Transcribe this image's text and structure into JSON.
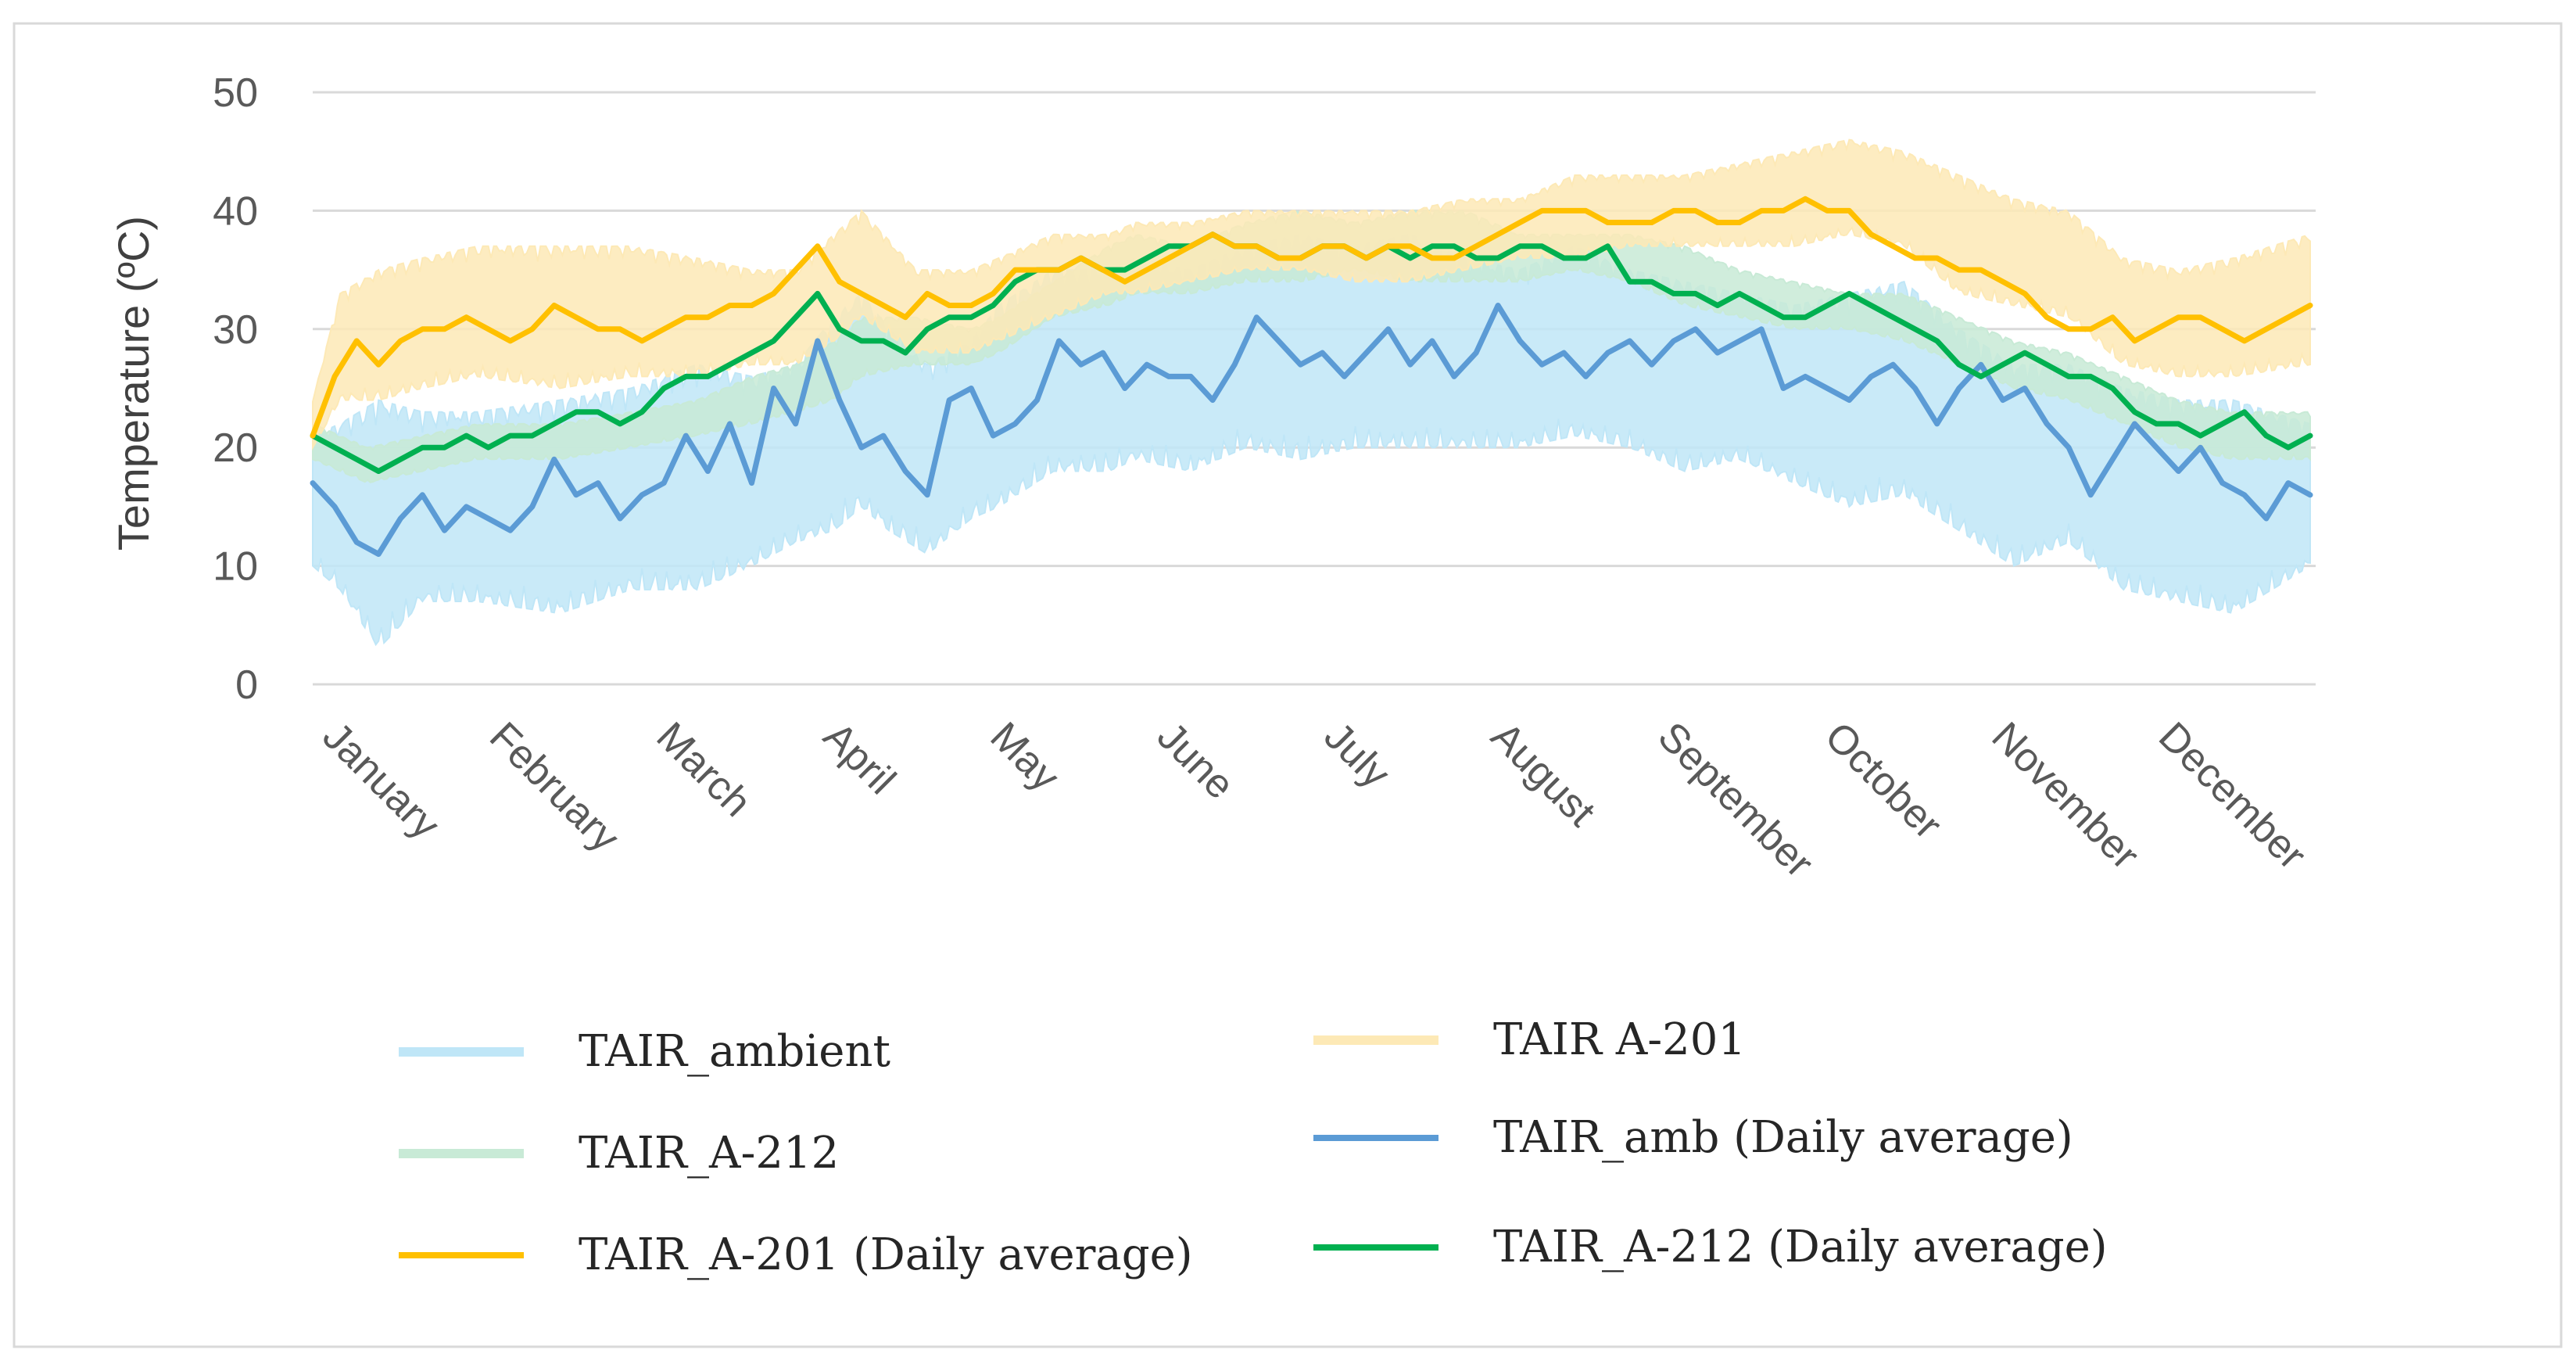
{
  "chart_data": {
    "type": "line",
    "title": "",
    "ylabel": "Temperature (ºC)",
    "xlabel": "",
    "ylim": [
      0,
      50
    ],
    "yticks": [
      0,
      10,
      20,
      30,
      40,
      50
    ],
    "grid": true,
    "legend_position": "bottom",
    "month_labels": [
      "January",
      "February",
      "March",
      "April",
      "May",
      "June",
      "July",
      "August",
      "September",
      "October",
      "November",
      "December"
    ],
    "days_in_year": 365,
    "series": [
      {
        "name": "TAIR_ambient",
        "kind": "hourly-range",
        "color": "#bfe6f7",
        "days": [
          0,
          5,
          12,
          20,
          30,
          45,
          58,
          70,
          80,
          88,
          95,
          100,
          105,
          112,
          120,
          125,
          135,
          145,
          150,
          160,
          170,
          180,
          190,
          200,
          210,
          220,
          230,
          240,
          250,
          260,
          270,
          280,
          290,
          300,
          310,
          320,
          330,
          340,
          350,
          364
        ],
        "min": [
          10,
          8,
          3,
          7,
          7,
          6,
          8,
          8,
          10,
          12,
          13,
          15,
          13,
          11,
          14,
          15,
          18,
          18,
          19,
          18,
          20,
          19,
          20,
          20,
          20,
          20,
          21,
          20,
          18,
          19,
          17,
          15,
          16,
          13,
          10,
          12,
          8,
          7,
          6,
          10
        ],
        "max": [
          21,
          22,
          24,
          23,
          23,
          24,
          25,
          27,
          26,
          27,
          31,
          33,
          30,
          27,
          29,
          32,
          35,
          35,
          36,
          35,
          37,
          38,
          37,
          38,
          36,
          35,
          37,
          35,
          34,
          33,
          32,
          33,
          34,
          30,
          27,
          27,
          25,
          24,
          24,
          22
        ]
      },
      {
        "name": "TAIR_A-212",
        "kind": "hourly-range",
        "color": "#c8ead6",
        "days": [
          0,
          10,
          20,
          30,
          45,
          58,
          70,
          80,
          88,
          95,
          100,
          110,
          120,
          125,
          135,
          145,
          150,
          160,
          170,
          180,
          190,
          200,
          210,
          220,
          230,
          240,
          250,
          260,
          270,
          280,
          290,
          300,
          310,
          320,
          330,
          340,
          350,
          364
        ],
        "min": [
          19,
          17,
          18,
          19,
          19,
          20,
          21,
          22,
          23,
          24,
          26,
          27,
          27,
          28,
          31,
          32,
          33,
          33,
          34,
          34,
          35,
          34,
          34,
          34,
          35,
          34,
          32,
          31,
          30,
          30,
          29,
          27,
          25,
          24,
          22,
          20,
          19,
          19
        ],
        "max": [
          22,
          20,
          21,
          22,
          22,
          23,
          24,
          26,
          27,
          29,
          31,
          31,
          30,
          31,
          34,
          37,
          38,
          37,
          39,
          40,
          39,
          40,
          40,
          38,
          38,
          38,
          37,
          35,
          34,
          33,
          33,
          31,
          29,
          28,
          26,
          24,
          23,
          23
        ]
      },
      {
        "name": "TAIR A-201",
        "kind": "hourly-range",
        "color": "#fde9b6",
        "days": [
          0,
          5,
          12,
          20,
          30,
          45,
          58,
          70,
          80,
          88,
          95,
          100,
          110,
          120,
          125,
          135,
          145,
          150,
          160,
          170,
          180,
          190,
          200,
          210,
          220,
          230,
          240,
          250,
          260,
          270,
          280,
          290,
          300,
          310,
          320,
          330,
          340,
          350,
          364
        ],
        "min": [
          20,
          24,
          24,
          25,
          26,
          25,
          26,
          26,
          27,
          27,
          29,
          31,
          28,
          28,
          29,
          31,
          33,
          33,
          34,
          35,
          35,
          34,
          34,
          35,
          36,
          36,
          37,
          37,
          37,
          37,
          38,
          37,
          33,
          32,
          31,
          27,
          26,
          26,
          27
        ],
        "max": [
          24,
          33,
          35,
          36,
          37,
          37,
          37,
          36,
          35,
          35,
          38,
          40,
          35,
          35,
          36,
          38,
          38,
          39,
          39,
          40,
          40,
          40,
          40,
          41,
          41,
          43,
          43,
          43,
          44,
          45,
          46,
          45,
          43,
          41,
          40,
          36,
          35,
          36,
          38
        ]
      },
      {
        "name": "TAIR_amb (Daily average)",
        "kind": "daily-average",
        "color": "#5b9bd5",
        "days": [
          0,
          4,
          8,
          12,
          16,
          20,
          24,
          28,
          32,
          36,
          40,
          44,
          48,
          52,
          56,
          60,
          64,
          68,
          72,
          76,
          80,
          84,
          88,
          92,
          96,
          100,
          104,
          108,
          112,
          116,
          120,
          124,
          128,
          132,
          136,
          140,
          144,
          148,
          152,
          156,
          160,
          164,
          168,
          172,
          176,
          180,
          184,
          188,
          192,
          196,
          200,
          204,
          208,
          212,
          216,
          220,
          224,
          228,
          232,
          236,
          240,
          244,
          248,
          252,
          256,
          260,
          264,
          268,
          272,
          276,
          280,
          284,
          288,
          292,
          296,
          300,
          304,
          308,
          312,
          316,
          320,
          324,
          328,
          332,
          336,
          340,
          344,
          348,
          352,
          356,
          360,
          364
        ],
        "values": [
          17,
          15,
          12,
          11,
          14,
          16,
          13,
          15,
          14,
          13,
          15,
          19,
          16,
          17,
          14,
          16,
          17,
          21,
          18,
          22,
          17,
          25,
          22,
          29,
          24,
          20,
          21,
          18,
          16,
          24,
          25,
          21,
          22,
          24,
          29,
          27,
          28,
          25,
          27,
          26,
          26,
          24,
          27,
          31,
          29,
          27,
          28,
          26,
          28,
          30,
          27,
          29,
          26,
          28,
          32,
          29,
          27,
          28,
          26,
          28,
          29,
          27,
          29,
          30,
          28,
          29,
          30,
          25,
          26,
          25,
          24,
          26,
          27,
          25,
          22,
          25,
          27,
          24,
          25,
          22,
          20,
          16,
          19,
          22,
          20,
          18,
          20,
          17,
          16,
          14,
          17,
          16
        ]
      },
      {
        "name": "TAIR_A-201 (Daily average)",
        "kind": "daily-average",
        "color": "#ffc000",
        "days": [
          0,
          4,
          8,
          12,
          16,
          20,
          24,
          28,
          32,
          36,
          40,
          44,
          48,
          52,
          56,
          60,
          64,
          68,
          72,
          76,
          80,
          84,
          88,
          92,
          96,
          100,
          104,
          108,
          112,
          116,
          120,
          124,
          128,
          132,
          136,
          140,
          144,
          148,
          152,
          156,
          160,
          164,
          168,
          172,
          176,
          180,
          184,
          188,
          192,
          196,
          200,
          204,
          208,
          212,
          216,
          220,
          224,
          228,
          232,
          236,
          240,
          244,
          248,
          252,
          256,
          260,
          264,
          268,
          272,
          276,
          280,
          284,
          288,
          292,
          296,
          300,
          304,
          308,
          312,
          316,
          320,
          324,
          328,
          332,
          336,
          340,
          344,
          348,
          352,
          356,
          360,
          364
        ],
        "values": [
          21,
          26,
          29,
          27,
          29,
          30,
          30,
          31,
          30,
          29,
          30,
          32,
          31,
          30,
          30,
          29,
          30,
          31,
          31,
          32,
          32,
          33,
          35,
          37,
          34,
          33,
          32,
          31,
          33,
          32,
          32,
          33,
          35,
          35,
          35,
          36,
          35,
          34,
          35,
          36,
          37,
          38,
          37,
          37,
          36,
          36,
          37,
          37,
          36,
          37,
          37,
          36,
          36,
          37,
          38,
          39,
          40,
          40,
          40,
          39,
          39,
          39,
          40,
          40,
          39,
          39,
          40,
          40,
          41,
          40,
          40,
          38,
          37,
          36,
          36,
          35,
          35,
          34,
          33,
          31,
          30,
          30,
          31,
          29,
          30,
          31,
          31,
          30,
          29,
          30,
          31,
          32
        ]
      },
      {
        "name": "TAIR_A-212 (Daily average)",
        "kind": "daily-average",
        "color": "#00b050",
        "days": [
          0,
          4,
          8,
          12,
          16,
          20,
          24,
          28,
          32,
          36,
          40,
          44,
          48,
          52,
          56,
          60,
          64,
          68,
          72,
          76,
          80,
          84,
          88,
          92,
          96,
          100,
          104,
          108,
          112,
          116,
          120,
          124,
          128,
          132,
          136,
          140,
          144,
          148,
          152,
          156,
          160,
          164,
          168,
          172,
          176,
          180,
          184,
          188,
          192,
          196,
          200,
          204,
          208,
          212,
          216,
          220,
          224,
          228,
          232,
          236,
          240,
          244,
          248,
          252,
          256,
          260,
          264,
          268,
          272,
          276,
          280,
          284,
          288,
          292,
          296,
          300,
          304,
          308,
          312,
          316,
          320,
          324,
          328,
          332,
          336,
          340,
          344,
          348,
          352,
          356,
          360,
          364
        ],
        "values": [
          21,
          20,
          19,
          18,
          19,
          20,
          20,
          21,
          20,
          21,
          21,
          22,
          23,
          23,
          22,
          23,
          25,
          26,
          26,
          27,
          28,
          29,
          31,
          33,
          30,
          29,
          29,
          28,
          30,
          31,
          31,
          32,
          34,
          35,
          35,
          36,
          35,
          35,
          36,
          37,
          37,
          38,
          37,
          37,
          36,
          36,
          37,
          37,
          36,
          37,
          36,
          37,
          37,
          36,
          36,
          37,
          37,
          36,
          36,
          37,
          34,
          34,
          33,
          33,
          32,
          33,
          32,
          31,
          31,
          32,
          33,
          32,
          31,
          30,
          29,
          27,
          26,
          27,
          28,
          27,
          26,
          26,
          25,
          23,
          22,
          22,
          21,
          22,
          23,
          21,
          20,
          21
        ]
      }
    ]
  }
}
